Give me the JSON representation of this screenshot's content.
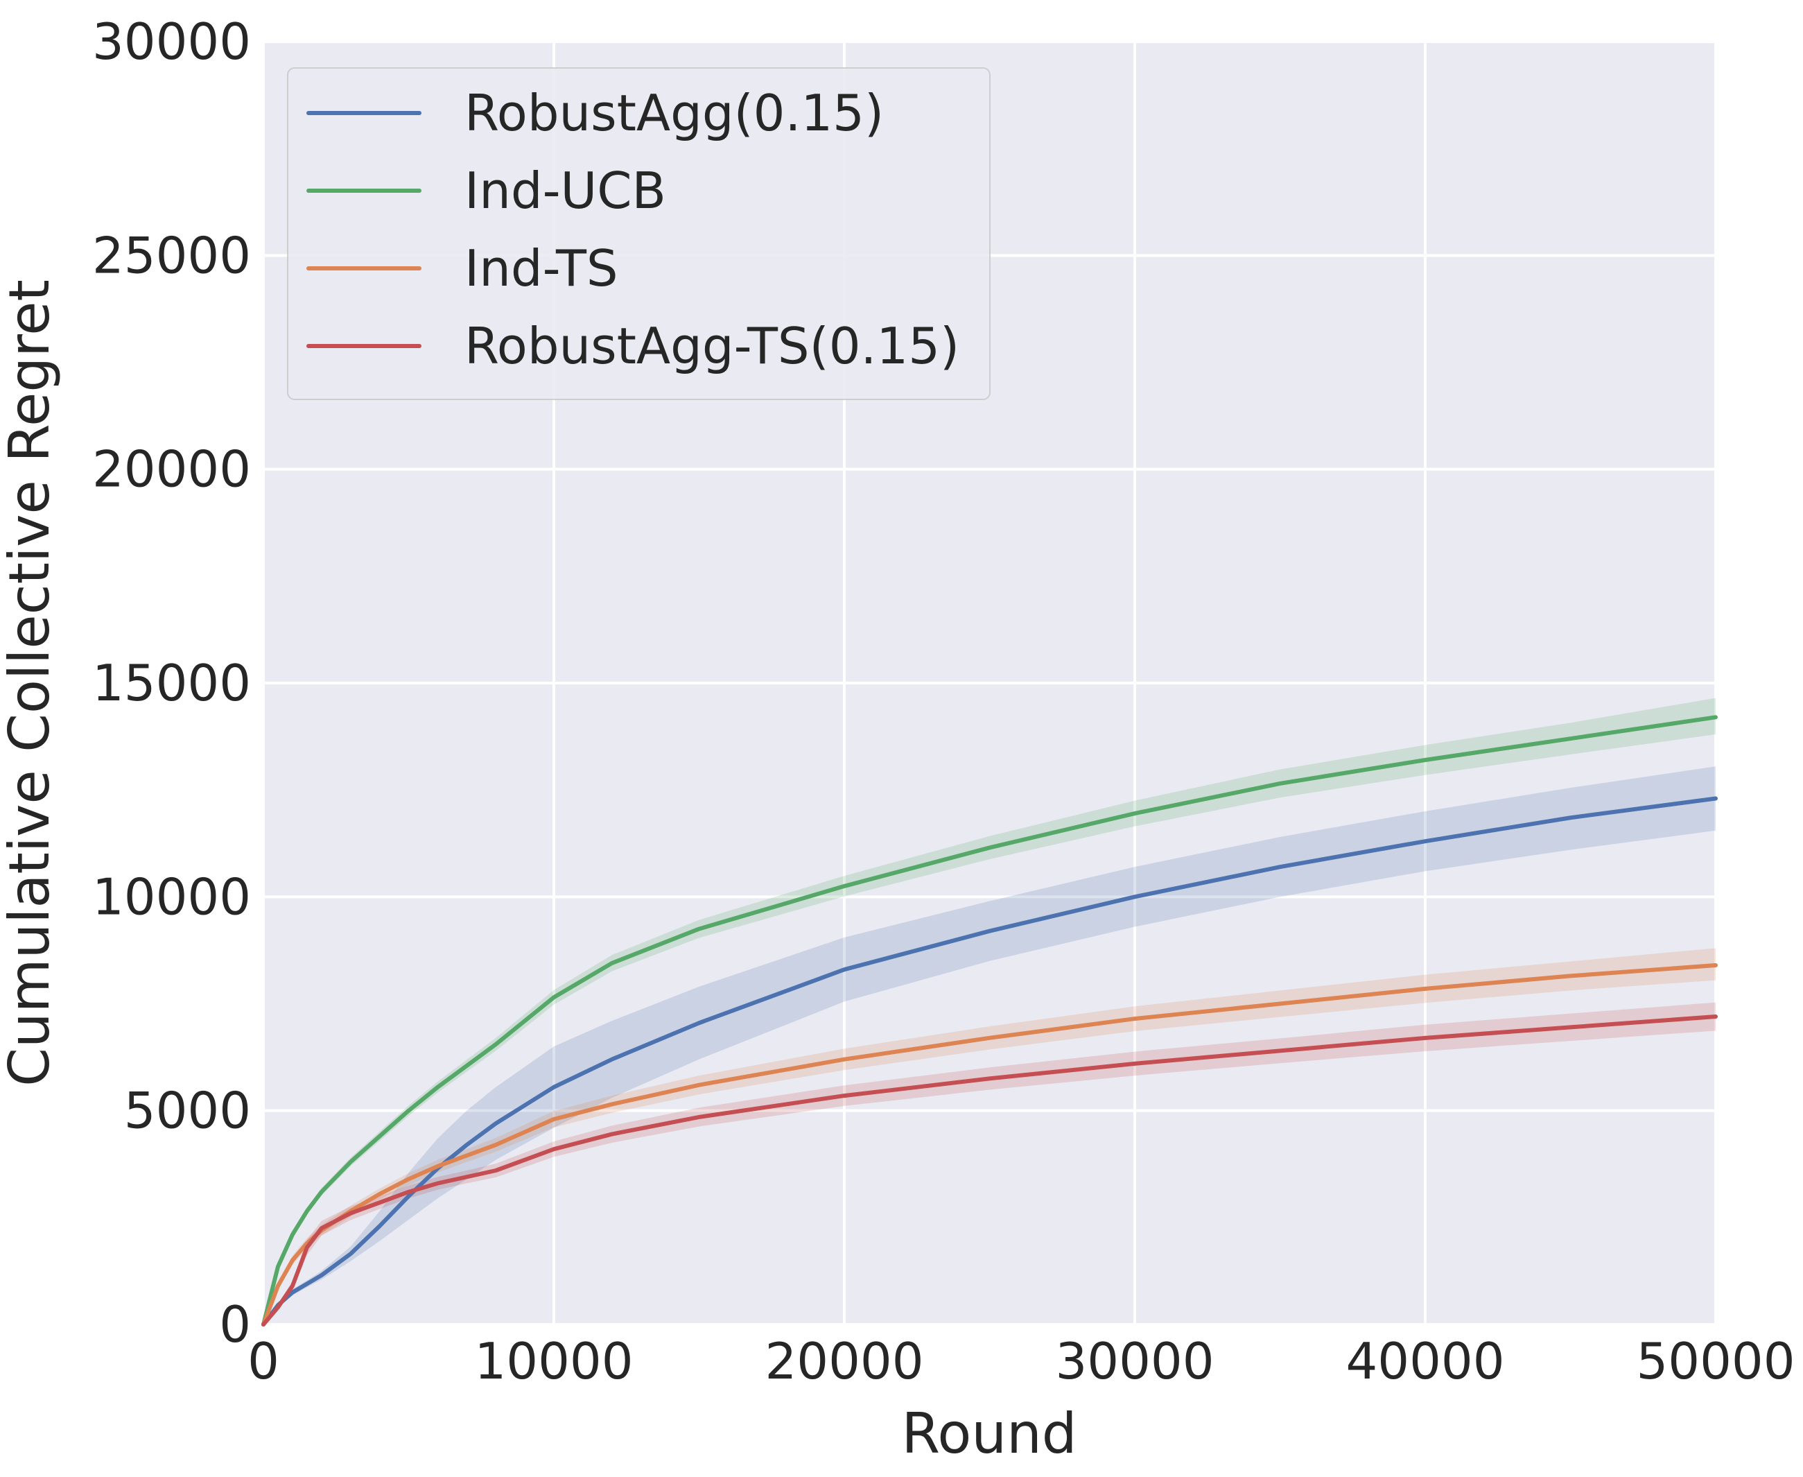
{
  "chart_data": {
    "type": "line",
    "title": "",
    "xlabel": "Round",
    "ylabel": "Cumulative Collective Regret",
    "xlim": [
      0,
      50000
    ],
    "ylim": [
      0,
      30000
    ],
    "xticks": [
      0,
      10000,
      20000,
      30000,
      40000,
      50000
    ],
    "yticks": [
      0,
      5000,
      10000,
      15000,
      20000,
      25000,
      30000
    ],
    "xtick_labels": [
      "0",
      "10000",
      "20000",
      "30000",
      "40000",
      "50000"
    ],
    "ytick_labels": [
      "0",
      "5000",
      "10000",
      "15000",
      "20000",
      "25000",
      "30000"
    ],
    "grid": true,
    "legend_position": "top-left",
    "background_color": "#eaeaf2",
    "x": [
      0,
      500,
      1000,
      1500,
      2000,
      3000,
      4000,
      5000,
      6000,
      7000,
      8000,
      10000,
      12000,
      15000,
      20000,
      25000,
      30000,
      35000,
      40000,
      45000,
      50000
    ],
    "series": [
      {
        "name": "RobustAgg(0.15)",
        "color": "#4c72b0",
        "values": [
          0,
          450,
          750,
          950,
          1150,
          1650,
          2300,
          3000,
          3650,
          4200,
          4700,
          5550,
          6200,
          7050,
          8300,
          9200,
          10000,
          10700,
          11300,
          11850,
          12300
        ],
        "lower": [
          0,
          400,
          680,
          870,
          1050,
          1480,
          1950,
          2450,
          2950,
          3400,
          3850,
          4600,
          5300,
          6200,
          7550,
          8500,
          9300,
          10000,
          10600,
          11100,
          11550
        ],
        "upper": [
          0,
          500,
          820,
          1030,
          1250,
          1820,
          2650,
          3550,
          4350,
          5000,
          5550,
          6500,
          7100,
          7900,
          9050,
          9900,
          10700,
          11400,
          12000,
          12550,
          13050
        ]
      },
      {
        "name": "Ind-UCB",
        "color": "#55a868",
        "values": [
          0,
          1350,
          2100,
          2650,
          3100,
          3800,
          4400,
          5000,
          5550,
          6050,
          6550,
          7650,
          8450,
          9250,
          10250,
          11150,
          11950,
          12650,
          13200,
          13700,
          14200
        ],
        "lower": [
          0,
          1300,
          2030,
          2570,
          3010,
          3700,
          4290,
          4880,
          5420,
          5910,
          6400,
          7480,
          8260,
          9040,
          10010,
          10880,
          11650,
          12320,
          12850,
          13330,
          13800
        ],
        "upper": [
          0,
          1400,
          2170,
          2730,
          3190,
          3900,
          4510,
          5120,
          5680,
          6190,
          6700,
          7820,
          8640,
          9460,
          10490,
          11420,
          12250,
          12980,
          13550,
          14070,
          14650
        ]
      },
      {
        "name": "Ind-TS",
        "color": "#dd8452",
        "values": [
          0,
          900,
          1500,
          1900,
          2200,
          2650,
          3050,
          3400,
          3700,
          3950,
          4200,
          4800,
          5150,
          5600,
          6200,
          6700,
          7150,
          7500,
          7850,
          8150,
          8400
        ],
        "lower": [
          0,
          820,
          1390,
          1780,
          2080,
          2520,
          2920,
          3260,
          3550,
          3800,
          4040,
          4610,
          4950,
          5380,
          5950,
          6430,
          6860,
          7190,
          7520,
          7810,
          8050
        ],
        "upper": [
          0,
          980,
          1610,
          2020,
          2320,
          2780,
          3180,
          3540,
          3850,
          4100,
          4360,
          4990,
          5350,
          5820,
          6450,
          6970,
          7440,
          7810,
          8180,
          8490,
          8800
        ]
      },
      {
        "name": "RobustAgg-TS(0.15)",
        "color": "#c44e52",
        "values": [
          0,
          400,
          900,
          1800,
          2250,
          2600,
          2850,
          3100,
          3300,
          3450,
          3600,
          4100,
          4450,
          4850,
          5350,
          5750,
          6100,
          6400,
          6700,
          6950,
          7200
        ],
        "lower": [
          0,
          330,
          780,
          1620,
          2080,
          2440,
          2700,
          2950,
          3150,
          3300,
          3440,
          3920,
          4250,
          4630,
          5110,
          5490,
          5820,
          6110,
          6390,
          6630,
          6870
        ],
        "upper": [
          0,
          470,
          1020,
          1980,
          2420,
          2760,
          3000,
          3250,
          3450,
          3600,
          3760,
          4280,
          4650,
          5070,
          5590,
          6010,
          6380,
          6690,
          7010,
          7270,
          7530
        ]
      }
    ]
  }
}
